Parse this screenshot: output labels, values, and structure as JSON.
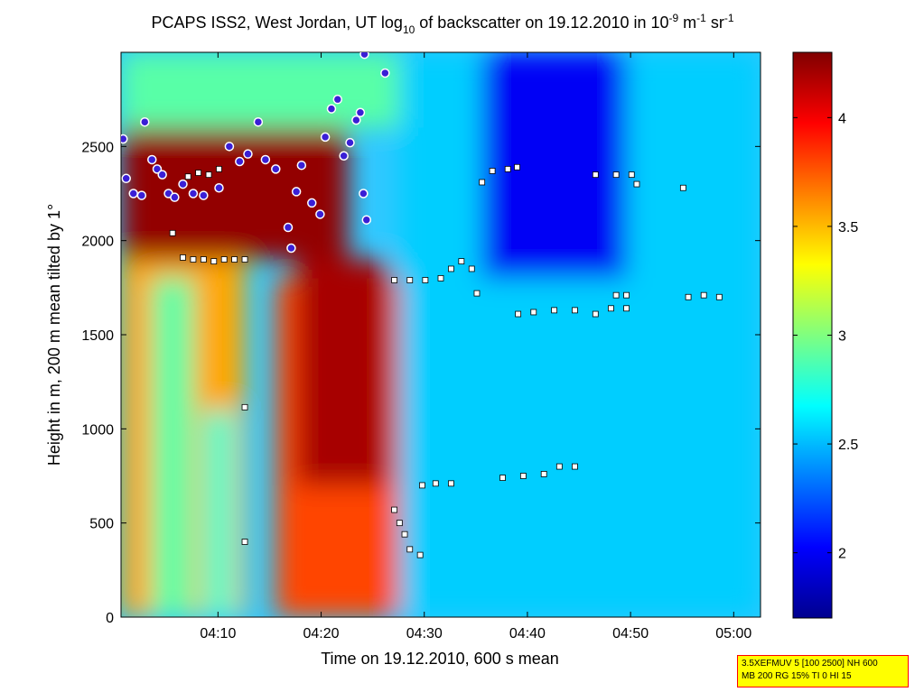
{
  "chart_data": {
    "type": "heatmap",
    "title": {
      "part1": "PCAPS ISS2, West Jordan, UT log",
      "sub10": "10",
      "part2": " of backscatter on 19.12.2010 in 10",
      "sup_exp": "-9",
      "part3": " m",
      "sup_m": "-1",
      "part4": " sr",
      "sup_sr": "-1"
    },
    "xlabel": "Time on 19.12.2010, 600 s mean",
    "ylabel": "Height in m, 200 m mean tilted by 1°",
    "x_ticks": [
      "04:10",
      "04:20",
      "04:30",
      "04:40",
      "04:50",
      "05:00"
    ],
    "y_ticks": [
      "0",
      "500",
      "1000",
      "1500",
      "2000",
      "2500"
    ],
    "ylim": [
      0,
      3000
    ],
    "xlim_minutes": [
      0,
      62
    ],
    "colorbar": {
      "ticks": [
        "2",
        "2.5",
        "3",
        "3.5",
        "4"
      ],
      "range": [
        1.7,
        4.3
      ],
      "colormap": "jet"
    },
    "regions": [
      {
        "t_start": 0,
        "t_end": 12,
        "h_start": 0,
        "h_end": 1900,
        "level": 3.55
      },
      {
        "t_start": 3,
        "t_end": 7,
        "h_start": 0,
        "h_end": 1800,
        "level": 2.9
      },
      {
        "t_start": 8,
        "t_end": 11,
        "h_start": 0,
        "h_end": 1100,
        "level": 2.8
      },
      {
        "t_start": 15,
        "t_end": 27,
        "h_start": 0,
        "h_end": 1800,
        "level": 3.8
      },
      {
        "t_start": 17,
        "t_end": 26,
        "h_start": 700,
        "h_end": 1900,
        "level": 4.2
      },
      {
        "t_start": 27,
        "t_end": 62,
        "h_start": 0,
        "h_end": 3000,
        "level": 2.55
      },
      {
        "t_start": 35,
        "t_end": 49,
        "h_start": 1800,
        "h_end": 3000,
        "level": 2.0
      },
      {
        "t_start": 0,
        "t_end": 22,
        "h_start": 1900,
        "h_end": 2600,
        "level": 4.25
      },
      {
        "t_start": 0,
        "t_end": 27,
        "h_start": 2600,
        "h_end": 3000,
        "level": 2.9
      }
    ],
    "markers": {
      "cloud_base_dots": [
        {
          "t": 0.2,
          "h": 2540
        },
        {
          "t": 0.5,
          "h": 2330
        },
        {
          "t": 1.2,
          "h": 2250
        },
        {
          "t": 2.0,
          "h": 2240
        },
        {
          "t": 2.3,
          "h": 2630
        },
        {
          "t": 3.0,
          "h": 2430
        },
        {
          "t": 3.5,
          "h": 2380
        },
        {
          "t": 4.0,
          "h": 2350
        },
        {
          "t": 4.6,
          "h": 2250
        },
        {
          "t": 5.2,
          "h": 2230
        },
        {
          "t": 6.0,
          "h": 2300
        },
        {
          "t": 7.0,
          "h": 2250
        },
        {
          "t": 8.0,
          "h": 2240
        },
        {
          "t": 9.5,
          "h": 2280
        },
        {
          "t": 10.5,
          "h": 2500
        },
        {
          "t": 11.5,
          "h": 2420
        },
        {
          "t": 12.3,
          "h": 2460
        },
        {
          "t": 13.3,
          "h": 2630
        },
        {
          "t": 14.0,
          "h": 2430
        },
        {
          "t": 15.0,
          "h": 2380
        },
        {
          "t": 16.2,
          "h": 2070
        },
        {
          "t": 16.5,
          "h": 1960
        },
        {
          "t": 17.0,
          "h": 2260
        },
        {
          "t": 17.5,
          "h": 2400
        },
        {
          "t": 18.5,
          "h": 2200
        },
        {
          "t": 19.3,
          "h": 2140
        },
        {
          "t": 19.8,
          "h": 2550
        },
        {
          "t": 20.4,
          "h": 2700
        },
        {
          "t": 21.0,
          "h": 2750
        },
        {
          "t": 21.6,
          "h": 2450
        },
        {
          "t": 22.2,
          "h": 2520
        },
        {
          "t": 22.8,
          "h": 2640
        },
        {
          "t": 23.2,
          "h": 2680
        },
        {
          "t": 23.5,
          "h": 2250
        },
        {
          "t": 23.8,
          "h": 2110
        },
        {
          "t": 23.6,
          "h": 2990
        },
        {
          "t": 25.6,
          "h": 2890
        }
      ],
      "layer_squares": [
        {
          "t": 5.0,
          "h": 2040
        },
        {
          "t": 6.0,
          "h": 1910
        },
        {
          "t": 7.0,
          "h": 1900
        },
        {
          "t": 8.0,
          "h": 1900
        },
        {
          "t": 9.0,
          "h": 1890
        },
        {
          "t": 10.0,
          "h": 1900
        },
        {
          "t": 11.0,
          "h": 1900
        },
        {
          "t": 12.0,
          "h": 1900
        },
        {
          "t": 6.5,
          "h": 2340
        },
        {
          "t": 7.5,
          "h": 2360
        },
        {
          "t": 8.5,
          "h": 2350
        },
        {
          "t": 9.5,
          "h": 2380
        },
        {
          "t": 12.0,
          "h": 1115
        },
        {
          "t": 12.0,
          "h": 400
        },
        {
          "t": 26.5,
          "h": 1790
        },
        {
          "t": 28.0,
          "h": 1790
        },
        {
          "t": 29.5,
          "h": 1790
        },
        {
          "t": 31.0,
          "h": 1800
        },
        {
          "t": 32.0,
          "h": 1850
        },
        {
          "t": 33.0,
          "h": 1890
        },
        {
          "t": 34.0,
          "h": 1850
        },
        {
          "t": 34.5,
          "h": 1720
        },
        {
          "t": 26.5,
          "h": 570
        },
        {
          "t": 27.0,
          "h": 500
        },
        {
          "t": 27.5,
          "h": 440
        },
        {
          "t": 28.0,
          "h": 360
        },
        {
          "t": 29.0,
          "h": 330
        },
        {
          "t": 29.2,
          "h": 700
        },
        {
          "t": 30.5,
          "h": 710
        },
        {
          "t": 32.0,
          "h": 710
        },
        {
          "t": 35.0,
          "h": 2310
        },
        {
          "t": 36.0,
          "h": 2370
        },
        {
          "t": 37.5,
          "h": 2380
        },
        {
          "t": 38.4,
          "h": 2390
        },
        {
          "t": 38.5,
          "h": 1610
        },
        {
          "t": 40.0,
          "h": 1620
        },
        {
          "t": 42.0,
          "h": 1630
        },
        {
          "t": 44.0,
          "h": 1630
        },
        {
          "t": 46.0,
          "h": 1610
        },
        {
          "t": 47.5,
          "h": 1640
        },
        {
          "t": 49.0,
          "h": 1640
        },
        {
          "t": 37.0,
          "h": 740
        },
        {
          "t": 39.0,
          "h": 750
        },
        {
          "t": 41.0,
          "h": 760
        },
        {
          "t": 42.5,
          "h": 800
        },
        {
          "t": 44.0,
          "h": 800
        },
        {
          "t": 46.0,
          "h": 2350
        },
        {
          "t": 48.0,
          "h": 2350
        },
        {
          "t": 49.5,
          "h": 2350
        },
        {
          "t": 50.0,
          "h": 2300
        },
        {
          "t": 54.5,
          "h": 2280
        },
        {
          "t": 48.0,
          "h": 1710
        },
        {
          "t": 49.0,
          "h": 1710
        },
        {
          "t": 55.0,
          "h": 1700
        },
        {
          "t": 56.5,
          "h": 1710
        },
        {
          "t": 58.0,
          "h": 1700
        }
      ]
    }
  },
  "info_box": {
    "line1": "3.5XEFMUV 5 [100 2500] NH 600",
    "line2": "MB 200 RG 15% TI 0 HI 15"
  }
}
